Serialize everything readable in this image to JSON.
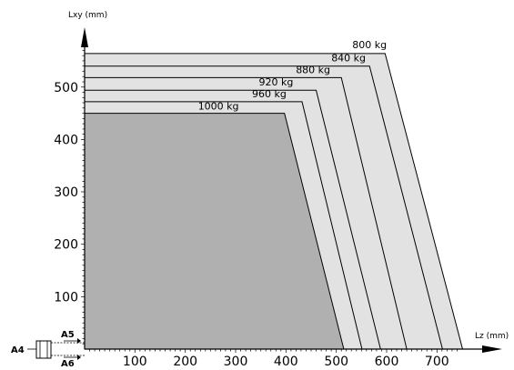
{
  "chart_data": {
    "type": "area",
    "xlabel": "Lz (mm)",
    "ylabel": "Lxy (mm)",
    "xlim": [
      0,
      750
    ],
    "ylim": [
      0,
      590
    ],
    "x_ticks": [
      100,
      200,
      300,
      400,
      500,
      600,
      700
    ],
    "y_ticks": [
      100,
      200,
      300,
      400,
      500
    ],
    "grid": false,
    "series": [
      {
        "name": "800 kg",
        "points": [
          [
            0,
            564
          ],
          [
            597,
            564
          ],
          [
            751,
            0
          ]
        ],
        "color": "#e2e2e2"
      },
      {
        "name": "840 kg",
        "points": [
          [
            0,
            540
          ],
          [
            566,
            540
          ],
          [
            711,
            0
          ]
        ],
        "color": "#e2e2e2"
      },
      {
        "name": "880 kg",
        "points": [
          [
            0,
            518
          ],
          [
            510,
            518
          ],
          [
            640,
            0
          ]
        ],
        "color": "#e2e2e2"
      },
      {
        "name": "920 kg",
        "points": [
          [
            0,
            494
          ],
          [
            460,
            494
          ],
          [
            588,
            0
          ]
        ],
        "color": "#e2e2e2"
      },
      {
        "name": "960 kg",
        "points": [
          [
            0,
            472
          ],
          [
            432,
            472
          ],
          [
            551,
            0
          ]
        ],
        "color": "#e2e2e2"
      },
      {
        "name": "1000 kg",
        "points": [
          [
            0,
            450
          ],
          [
            397,
            450
          ],
          [
            515,
            0
          ]
        ],
        "color": "#b0b0b0"
      }
    ],
    "annotations": {
      "wrist_axes": [
        "A4",
        "A5",
        "A6"
      ]
    }
  }
}
